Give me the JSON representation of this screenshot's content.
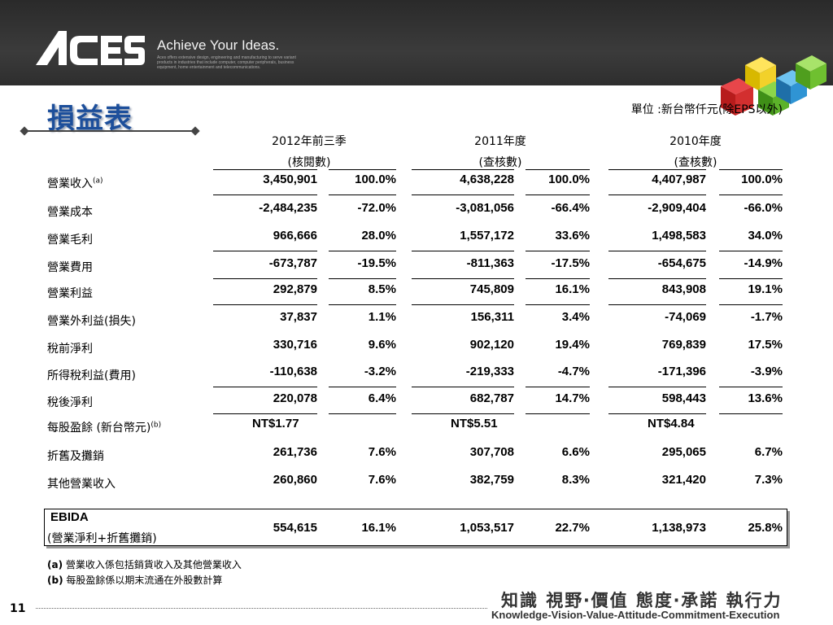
{
  "header": {
    "logo": "ACES",
    "tagline": "Achieve Your Ideas.",
    "description": "Aces offers extensive design, engineering and manufacturing to serve variant products in industries that include computer, computer peripherals, business equipment, home entertainment and telecommunications."
  },
  "title": "損益表",
  "unit_note": "單位 :新台幣仟元(除EPS以外)",
  "columns": [
    {
      "line1": "2012年前三季",
      "line2": "(核閱數)"
    },
    {
      "line1": "2011年度",
      "line2": "(查核數)"
    },
    {
      "line1": "2010年度",
      "line2": "(查核數)"
    }
  ],
  "rows": [
    {
      "label": "營業收入",
      "sup": "(a)",
      "v": [
        "3,450,901",
        "100.0%",
        "4,638,228",
        "100.0%",
        "4,407,987",
        "100.0%"
      ]
    },
    {
      "label": "營業成本",
      "sup": "",
      "v": [
        "-2,484,235",
        "-72.0%",
        "-3,081,056",
        "-66.4%",
        "-2,909,404",
        "-66.0%"
      ]
    },
    {
      "label": "營業毛利",
      "sup": "",
      "v": [
        "966,666",
        "28.0%",
        "1,557,172",
        "33.6%",
        "1,498,583",
        "34.0%"
      ]
    },
    {
      "label": "營業費用",
      "sup": "",
      "v": [
        "-673,787",
        "-19.5%",
        "-811,363",
        "-17.5%",
        "-654,675",
        "-14.9%"
      ]
    },
    {
      "label": "營業利益",
      "sup": "",
      "v": [
        "292,879",
        "8.5%",
        "745,809",
        "16.1%",
        "843,908",
        "19.1%"
      ]
    },
    {
      "label": "營業外利益(損失)",
      "sup": "",
      "v": [
        "37,837",
        "1.1%",
        "156,311",
        "3.4%",
        "-74,069",
        "-1.7%"
      ]
    },
    {
      "label": "稅前淨利",
      "sup": "",
      "v": [
        "330,716",
        "9.6%",
        "902,120",
        "19.4%",
        "769,839",
        "17.5%"
      ]
    },
    {
      "label": "所得稅利益(費用)",
      "sup": "",
      "v": [
        "-110,638",
        "-3.2%",
        "-219,333",
        "-4.7%",
        "-171,396",
        "-3.9%"
      ]
    },
    {
      "label": "稅後淨利",
      "sup": "",
      "v": [
        "220,078",
        "6.4%",
        "682,787",
        "14.7%",
        "598,443",
        "13.6%"
      ]
    },
    {
      "label": "每股盈餘 (新台幣元)",
      "sup": "(b)",
      "v": [
        "NT$1.77",
        "",
        "NT$5.51",
        "",
        "NT$4.84",
        ""
      ]
    },
    {
      "label": "折舊及攤銷",
      "sup": "",
      "v": [
        "261,736",
        "7.6%",
        "307,708",
        "6.6%",
        "295,065",
        "6.7%"
      ]
    },
    {
      "label": "其他營業收入",
      "sup": "",
      "v": [
        "260,860",
        "7.6%",
        "382,759",
        "8.3%",
        "321,420",
        "7.3%"
      ]
    }
  ],
  "ebida": {
    "label1": "EBIDA",
    "label2": "(營業淨利+折舊攤銷)",
    "v": [
      "554,615",
      "16.1%",
      "1,053,517",
      "22.7%",
      "1,138,973",
      "25.8%"
    ]
  },
  "footnotes": [
    {
      "mark": "(a)",
      "text": " 營業收入係包括銷貨收入及其他營業收入"
    },
    {
      "mark": "(b)",
      "text": " 每股盈餘係以期末流通在外股數計算"
    }
  ],
  "slogan": "知識  視野‧價值  態度‧承諾  執行力",
  "slogan_en": "Knowledge-Vision-Value-Attitude-Commitment-Execution",
  "page_number": "11"
}
